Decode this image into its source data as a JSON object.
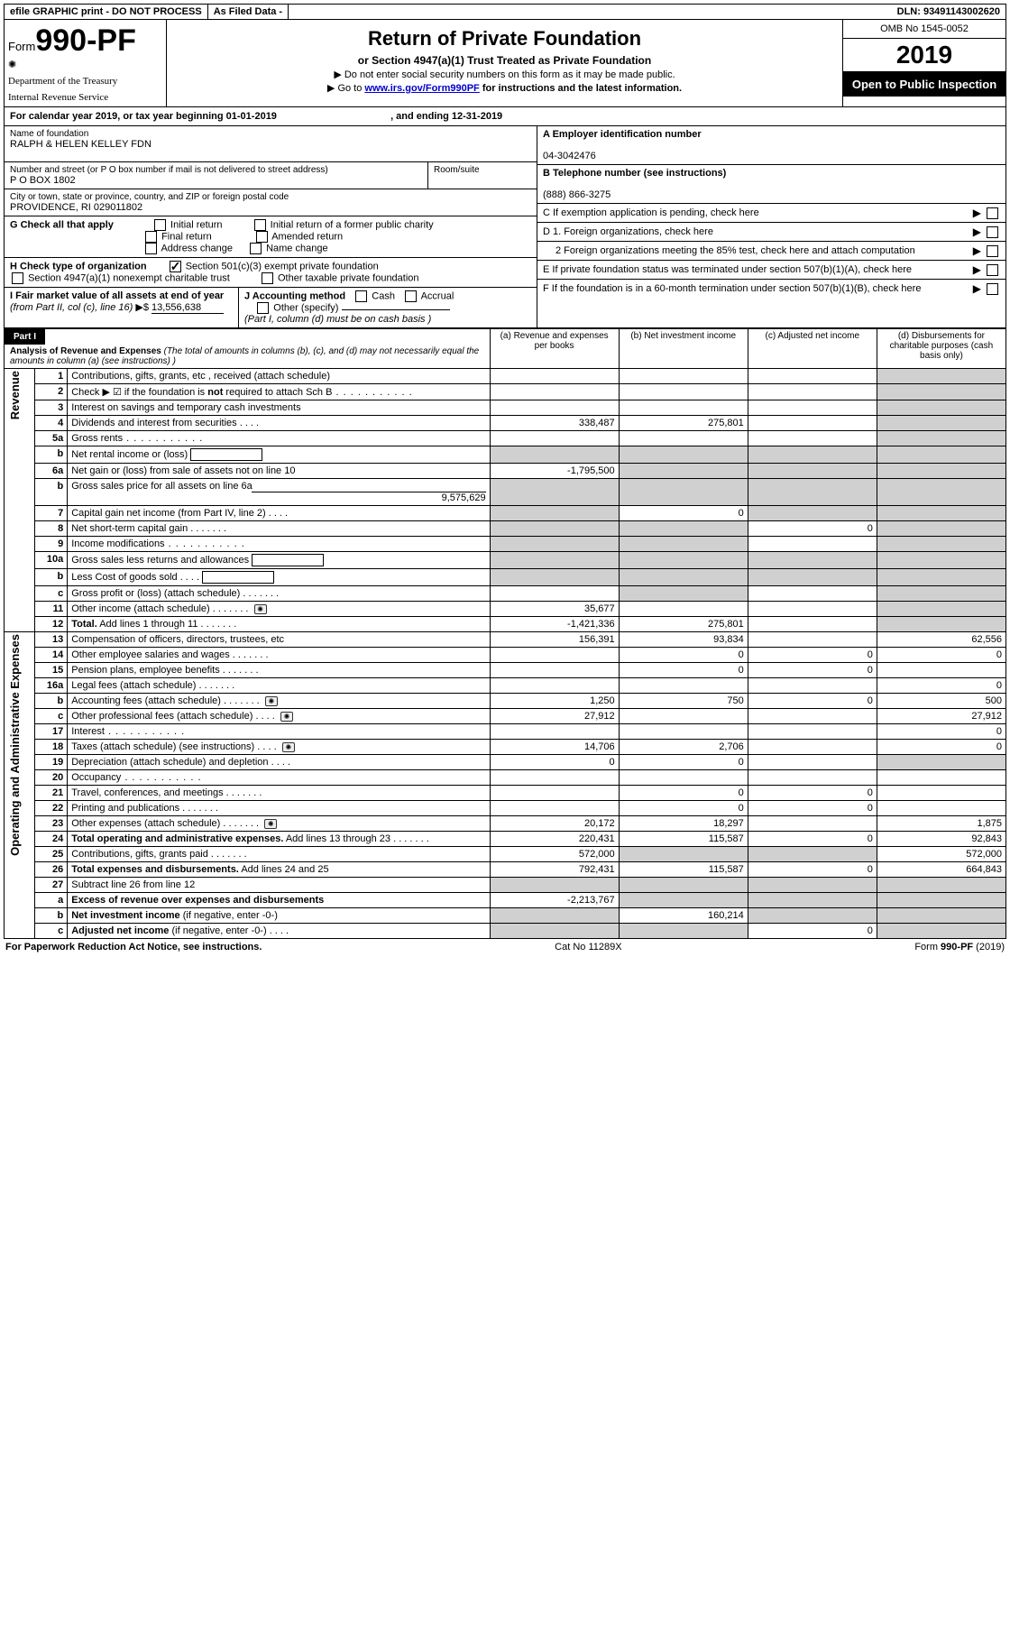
{
  "top": {
    "efile": "efile GRAPHIC print - DO NOT PROCESS",
    "asfiled": "As Filed Data -",
    "dln": "DLN: 93491143002620"
  },
  "header": {
    "form_word": "Form",
    "form_num": "990-PF",
    "dept1": "Department of the Treasury",
    "dept2": "Internal Revenue Service",
    "title": "Return of Private Foundation",
    "subtitle": "or Section 4947(a)(1) Trust Treated as Private Foundation",
    "instr1": "▶ Do not enter social security numbers on this form as it may be made public.",
    "instr2_a": "▶ Go to ",
    "instr2_link": "www.irs.gov/Form990PF",
    "instr2_b": " for instructions and the latest information.",
    "omb": "OMB No 1545-0052",
    "year": "2019",
    "open": "Open to Public Inspection"
  },
  "cal_year": {
    "prefix": "For calendar year 2019, or tax year beginning ",
    "begin": "01-01-2019",
    "mid": ", and ending ",
    "end": "12-31-2019"
  },
  "id": {
    "name_lbl": "Name of foundation",
    "name": "RALPH & HELEN KELLEY FDN",
    "addr_lbl": "Number and street (or P O  box number if mail is not delivered to street address)",
    "room_lbl": "Room/suite",
    "addr": "P O BOX 1802",
    "city_lbl": "City or town, state or province, country, and ZIP or foreign postal code",
    "city": "PROVIDENCE, RI  029011802",
    "ein_lbl": "A Employer identification number",
    "ein": "04-3042476",
    "tel_lbl": "B Telephone number (see instructions)",
    "tel": "(888) 866-3275",
    "c_lbl": "C  If exemption application is pending, check here",
    "g_lbl": "G Check all that apply",
    "g_opts": [
      "Initial return",
      "Initial return of a former public charity",
      "Final return",
      "Amended return",
      "Address change",
      "Name change"
    ],
    "h_lbl": "H Check type of organization",
    "h_opt1": "Section 501(c)(3) exempt private foundation",
    "h_opt2": "Section 4947(a)(1) nonexempt charitable trust",
    "h_opt3": "Other taxable private foundation",
    "i_lbl_a": "I Fair market value of all assets at end of year ",
    "i_lbl_b": "(from Part II, col  (c), line 16)",
    "i_arrow": "▶$",
    "i_val": "13,556,638",
    "j_lbl": "J Accounting method",
    "j_cash": "Cash",
    "j_accrual": "Accrual",
    "j_other": "Other (specify)",
    "j_note": "(Part I, column (d) must be on cash basis )",
    "d1": "D 1. Foreign organizations, check here",
    "d2": "2  Foreign organizations meeting the 85% test, check here and attach computation",
    "e": "E  If private foundation status was terminated under section 507(b)(1)(A), check here",
    "f": "F  If the foundation is in a 60-month termination under section 507(b)(1)(B), check here"
  },
  "part1": {
    "label": "Part I",
    "title": "Analysis of Revenue and Expenses",
    "title_note": " (The total of amounts in columns (b), (c), and (d) may not necessarily equal the amounts in column (a) (see instructions) )",
    "cols": {
      "a": "(a) Revenue and expenses per books",
      "b": "(b) Net investment income",
      "c": "(c) Adjusted net income",
      "d": "(d) Disbursements for charitable purposes (cash basis only)"
    },
    "side_rev": "Revenue",
    "side_exp": "Operating and Administrative Expenses"
  },
  "rows": [
    {
      "n": "1",
      "t": "Contributions, gifts, grants, etc , received (attach schedule)",
      "a": "",
      "b": "",
      "c": "",
      "d": "",
      "dg": true
    },
    {
      "n": "2",
      "t": "Check ▶ ☑ if the foundation is <b>not</b> required to attach Sch  B",
      "dots": "long",
      "a": "",
      "b": "",
      "c": "",
      "d": "",
      "dg": true
    },
    {
      "n": "3",
      "t": "Interest on savings and temporary cash investments",
      "a": "",
      "b": "",
      "c": "",
      "d": "",
      "dg": true
    },
    {
      "n": "4",
      "t": "Dividends and interest from securities",
      "dots": "s",
      "a": "338,487",
      "b": "275,801",
      "c": "",
      "d": "",
      "dg": true
    },
    {
      "n": "5a",
      "t": "Gross rents",
      "dots": "long",
      "a": "",
      "b": "",
      "c": "",
      "d": "",
      "dg": true
    },
    {
      "n": "b",
      "t": "Net rental income or (loss) <span class='inline-box'></span>",
      "a": "",
      "b": "",
      "c": "",
      "d": "",
      "allgrey": true
    },
    {
      "n": "6a",
      "t": "Net gain or (loss) from sale of assets not on line 10",
      "a": "-1,795,500",
      "b": "",
      "c": "",
      "d": "",
      "bcgrey": true,
      "dg": true
    },
    {
      "n": "b",
      "t": "Gross sales price for all assets on line 6a",
      "sub": "9,575,629",
      "a": "",
      "b": "",
      "c": "",
      "d": "",
      "allgrey": true
    },
    {
      "n": "7",
      "t": "Capital gain net income (from Part IV, line 2)",
      "dots": "s",
      "a": "",
      "b": "0",
      "c": "",
      "d": "",
      "agrey": true,
      "cgrey": true,
      "dg": true
    },
    {
      "n": "8",
      "t": "Net short-term capital gain",
      "dots": "m",
      "a": "",
      "b": "",
      "c": "0",
      "d": "",
      "agrey": true,
      "bgrey": true,
      "dg": true
    },
    {
      "n": "9",
      "t": "Income modifications",
      "dots": "long",
      "a": "",
      "b": "",
      "c": "",
      "d": "",
      "agrey": true,
      "bgrey": true,
      "dg": true
    },
    {
      "n": "10a",
      "t": "Gross sales less returns and allowances <span class='inline-box'></span>",
      "a": "",
      "b": "",
      "c": "",
      "d": "",
      "allgrey": true
    },
    {
      "n": "b",
      "t": "Less  Cost of goods sold",
      "dots": "s",
      "sub_box": true,
      "a": "",
      "b": "",
      "c": "",
      "d": "",
      "allgrey": true
    },
    {
      "n": "c",
      "t": "Gross profit or (loss) (attach schedule)",
      "dots": "m",
      "a": "",
      "b": "",
      "c": "",
      "d": "",
      "bgrey": true,
      "dg": true
    },
    {
      "n": "11",
      "t": "Other income (attach schedule)",
      "dots": "m",
      "icon": true,
      "a": "35,677",
      "b": "",
      "c": "",
      "d": "",
      "dg": true
    },
    {
      "n": "12",
      "t": "<b>Total.</b> Add lines 1 through 11",
      "dots": "m",
      "a": "-1,421,336",
      "b": "275,801",
      "c": "",
      "d": "",
      "dg": true
    },
    {
      "n": "13",
      "t": "Compensation of officers, directors, trustees, etc",
      "a": "156,391",
      "b": "93,834",
      "c": "",
      "d": "62,556"
    },
    {
      "n": "14",
      "t": "Other employee salaries and wages",
      "dots": "m",
      "a": "",
      "b": "0",
      "c": "0",
      "d": "0"
    },
    {
      "n": "15",
      "t": "Pension plans, employee benefits",
      "dots": "m",
      "a": "",
      "b": "0",
      "c": "0",
      "d": ""
    },
    {
      "n": "16a",
      "t": "Legal fees (attach schedule)",
      "dots": "m",
      "a": "",
      "b": "",
      "c": "",
      "d": "0"
    },
    {
      "n": "b",
      "t": "Accounting fees (attach schedule)",
      "dots": "m",
      "icon": true,
      "a": "1,250",
      "b": "750",
      "c": "0",
      "d": "500"
    },
    {
      "n": "c",
      "t": "Other professional fees (attach schedule)",
      "dots": "s",
      "icon": true,
      "a": "27,912",
      "b": "",
      "c": "",
      "d": "27,912"
    },
    {
      "n": "17",
      "t": "Interest",
      "dots": "long",
      "a": "",
      "b": "",
      "c": "",
      "d": "0"
    },
    {
      "n": "18",
      "t": "Taxes (attach schedule) (see instructions)",
      "dots": "s",
      "icon": true,
      "a": "14,706",
      "b": "2,706",
      "c": "",
      "d": "0"
    },
    {
      "n": "19",
      "t": "Depreciation (attach schedule) and depletion",
      "dots": "s",
      "a": "0",
      "b": "0",
      "c": "",
      "d": "",
      "dg": true
    },
    {
      "n": "20",
      "t": "Occupancy",
      "dots": "long",
      "a": "",
      "b": "",
      "c": "",
      "d": ""
    },
    {
      "n": "21",
      "t": "Travel, conferences, and meetings",
      "dots": "m",
      "a": "",
      "b": "0",
      "c": "0",
      "d": ""
    },
    {
      "n": "22",
      "t": "Printing and publications",
      "dots": "m",
      "a": "",
      "b": "0",
      "c": "0",
      "d": ""
    },
    {
      "n": "23",
      "t": "Other expenses (attach schedule)",
      "dots": "m",
      "icon": true,
      "a": "20,172",
      "b": "18,297",
      "c": "",
      "d": "1,875"
    },
    {
      "n": "24",
      "t": "<b>Total operating and administrative expenses.</b> Add lines 13 through 23",
      "dots": "m",
      "a": "220,431",
      "b": "115,587",
      "c": "0",
      "d": "92,843"
    },
    {
      "n": "25",
      "t": "Contributions, gifts, grants paid",
      "dots": "m",
      "a": "572,000",
      "b": "",
      "c": "",
      "d": "572,000",
      "bcgrey": true
    },
    {
      "n": "26",
      "t": "<b>Total expenses and disbursements.</b> Add lines 24 and 25",
      "a": "792,431",
      "b": "115,587",
      "c": "0",
      "d": "664,843"
    },
    {
      "n": "27",
      "t": "Subtract line 26 from line 12",
      "a": "",
      "b": "",
      "c": "",
      "d": "",
      "allgrey": true
    },
    {
      "n": "a",
      "t": "<b>Excess of revenue over expenses and disbursements</b>",
      "a": "-2,213,767",
      "b": "",
      "c": "",
      "d": "",
      "bcgrey": true,
      "dg": true
    },
    {
      "n": "b",
      "t": "<b>Net investment income</b> (if negative, enter -0-)",
      "a": "",
      "b": "160,214",
      "c": "",
      "d": "",
      "agrey": true,
      "cgrey": true,
      "dg": true
    },
    {
      "n": "c",
      "t": "<b>Adjusted net income</b> (if negative, enter -0-)",
      "dots": "s",
      "a": "",
      "b": "",
      "c": "0",
      "d": "",
      "agrey": true,
      "bgrey": true,
      "dg": true
    }
  ],
  "footer": {
    "left": "For Paperwork Reduction Act Notice, see instructions.",
    "mid": "Cat  No  11289X",
    "right": "Form 990-PF (2019)"
  }
}
